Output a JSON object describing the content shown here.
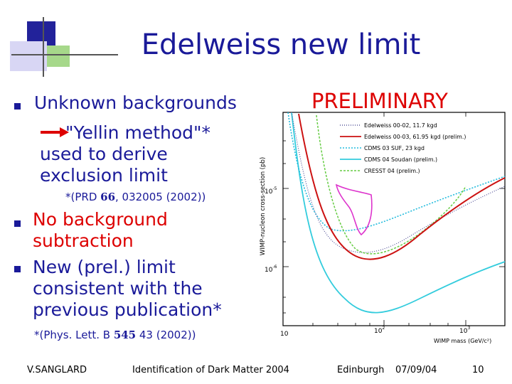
{
  "slide": {
    "title": "Edelweiss new limit",
    "preliminary": "PRELIMINARY",
    "bullets": [
      {
        "text": "Unknown backgrounds"
      },
      {
        "text": "No background subtraction",
        "line1": "No background",
        "line2": "subtraction"
      },
      {
        "text": "New (prel.) limit consistent with the previous publication*",
        "line1": "New (prel.) limit",
        "line2": "consistent  with the",
        "line3": "previous publication*"
      }
    ],
    "sub": {
      "line1": "\"Yellin method\"*",
      "line2": "used to derive",
      "line3": "exclusion limit"
    },
    "ref1": {
      "prefix": "*(PRD ",
      "bold": "66",
      "suffix": ", 032005 (2002))"
    },
    "ref2": {
      "prefix": "*(Phys. Lett. B ",
      "bold": "545",
      "suffix": " 43 (2002))"
    },
    "colors": {
      "title": "#1a1a99",
      "accent": "#dd0000"
    }
  },
  "chart_data": {
    "type": "line",
    "xlabel": "WIMP mass (GeV/c²)",
    "ylabel": "WIMP-nucleon cross-section (pb)",
    "x_scale": "log",
    "y_scale": "log",
    "x_ticks": [
      {
        "mant": "10",
        "exp": ""
      },
      {
        "mant": "10",
        "exp": "2"
      },
      {
        "mant": "10",
        "exp": "3"
      }
    ],
    "y_ticks": [
      {
        "mant": "10",
        "exp": "-5"
      },
      {
        "mant": "10",
        "exp": "-6"
      }
    ],
    "legend": [
      {
        "label": "Edelweiss 00-02, 11.7 kgd",
        "color": "#555599",
        "dash": "1 2"
      },
      {
        "label": "Edelweiss 00-03, 61.95 kgd (prelim.)",
        "color": "#cc1111",
        "dash": ""
      },
      {
        "label": "CDMS 03 SUF, 23 kgd",
        "color": "#22bbdd",
        "dash": "2 2"
      },
      {
        "label": "CDMS 04 Soudan (prelim.)",
        "color": "#33ccdd",
        "dash": ""
      },
      {
        "label": "CRESST 04 (prelim.)",
        "color": "#66cc44",
        "dash": "3 2"
      }
    ]
  },
  "footer": {
    "author": "V.SANGLARD",
    "topic": "Identification of Dark Matter 2004",
    "place": "Edinburgh",
    "date": "07/09/04",
    "page": "10"
  }
}
